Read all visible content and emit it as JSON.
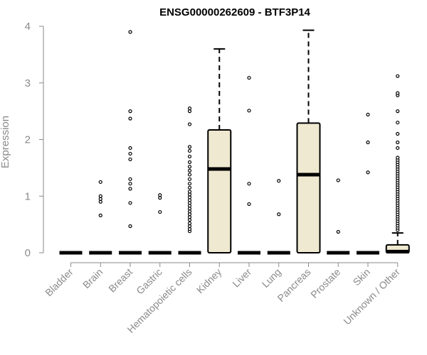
{
  "chart_data": {
    "type": "boxplot",
    "title": "ENSG00000262609 - BTF3P14",
    "xlabel": "",
    "ylabel": "Expression",
    "ylim": [
      0,
      4
    ],
    "yticks": [
      0,
      1,
      2,
      3,
      4
    ],
    "grid": false,
    "legend": "none",
    "box_fill": "#efe9d1",
    "box_stroke": "#000000",
    "categories": [
      "Bladder",
      "Brain",
      "Breast",
      "Gastric",
      "Hematopoietic cells",
      "Kidney",
      "Liver",
      "Lung",
      "Pancreas",
      "Prostate",
      "Skin",
      "Unknown / Other"
    ],
    "boxes": [
      {
        "category": "Bladder",
        "min": 0,
        "q1": 0,
        "median": 0,
        "q3": 0,
        "max": 0,
        "outliers": []
      },
      {
        "category": "Brain",
        "min": 0,
        "q1": 0,
        "median": 0,
        "q3": 0,
        "max": 0,
        "outliers": [
          0.66,
          0.9,
          0.95,
          1.0,
          1.25
        ]
      },
      {
        "category": "Breast",
        "min": 0,
        "q1": 0,
        "median": 0,
        "q3": 0,
        "max": 0,
        "outliers": [
          0.47,
          0.88,
          1.13,
          1.22,
          1.3,
          1.65,
          1.75,
          1.85,
          2.37,
          2.5,
          3.9
        ]
      },
      {
        "category": "Gastric",
        "min": 0,
        "q1": 0,
        "median": 0,
        "q3": 0,
        "max": 0,
        "outliers": [
          0.72,
          0.97,
          1.02
        ]
      },
      {
        "category": "Hematopoietic cells",
        "min": 0,
        "q1": 0,
        "median": 0,
        "q3": 0,
        "max": 0,
        "outliers": [
          0.38,
          0.42,
          0.47,
          0.52,
          0.58,
          0.63,
          0.68,
          0.73,
          0.78,
          0.83,
          0.88,
          0.93,
          0.98,
          1.03,
          1.08,
          1.15,
          1.22,
          1.3,
          1.38,
          1.45,
          1.52,
          1.6,
          1.7,
          1.8,
          1.87,
          2.27,
          2.5,
          2.55
        ]
      },
      {
        "category": "Kidney",
        "min": 0,
        "q1": 0,
        "median": 1.48,
        "q3": 2.17,
        "max": 3.6,
        "outliers": []
      },
      {
        "category": "Liver",
        "min": 0,
        "q1": 0,
        "median": 0,
        "q3": 0,
        "max": 0,
        "outliers": [
          0.86,
          1.22,
          2.51,
          3.09
        ]
      },
      {
        "category": "Lung",
        "min": 0,
        "q1": 0,
        "median": 0,
        "q3": 0,
        "max": 0,
        "outliers": [
          0.68,
          1.27
        ]
      },
      {
        "category": "Pancreas",
        "min": 0,
        "q1": 0,
        "median": 1.38,
        "q3": 2.29,
        "max": 3.93,
        "outliers": []
      },
      {
        "category": "Prostate",
        "min": 0,
        "q1": 0,
        "median": 0,
        "q3": 0,
        "max": 0,
        "outliers": [
          0.37,
          1.28
        ]
      },
      {
        "category": "Skin",
        "min": 0,
        "q1": 0,
        "median": 0,
        "q3": 0,
        "max": 0,
        "outliers": [
          1.42,
          1.95,
          2.44
        ]
      },
      {
        "category": "Unknown / Other",
        "min": 0,
        "q1": 0,
        "median": 0.02,
        "q3": 0.14,
        "max": 0.35,
        "outliers": [
          0.4,
          0.44,
          0.48,
          0.52,
          0.56,
          0.6,
          0.64,
          0.68,
          0.72,
          0.76,
          0.8,
          0.84,
          0.88,
          0.92,
          0.96,
          1.0,
          1.04,
          1.08,
          1.12,
          1.16,
          1.2,
          1.24,
          1.28,
          1.32,
          1.36,
          1.4,
          1.44,
          1.48,
          1.52,
          1.56,
          1.6,
          1.64,
          1.68,
          1.85,
          1.95,
          2.1,
          2.3,
          2.5,
          2.78,
          2.82,
          3.12
        ]
      }
    ]
  }
}
